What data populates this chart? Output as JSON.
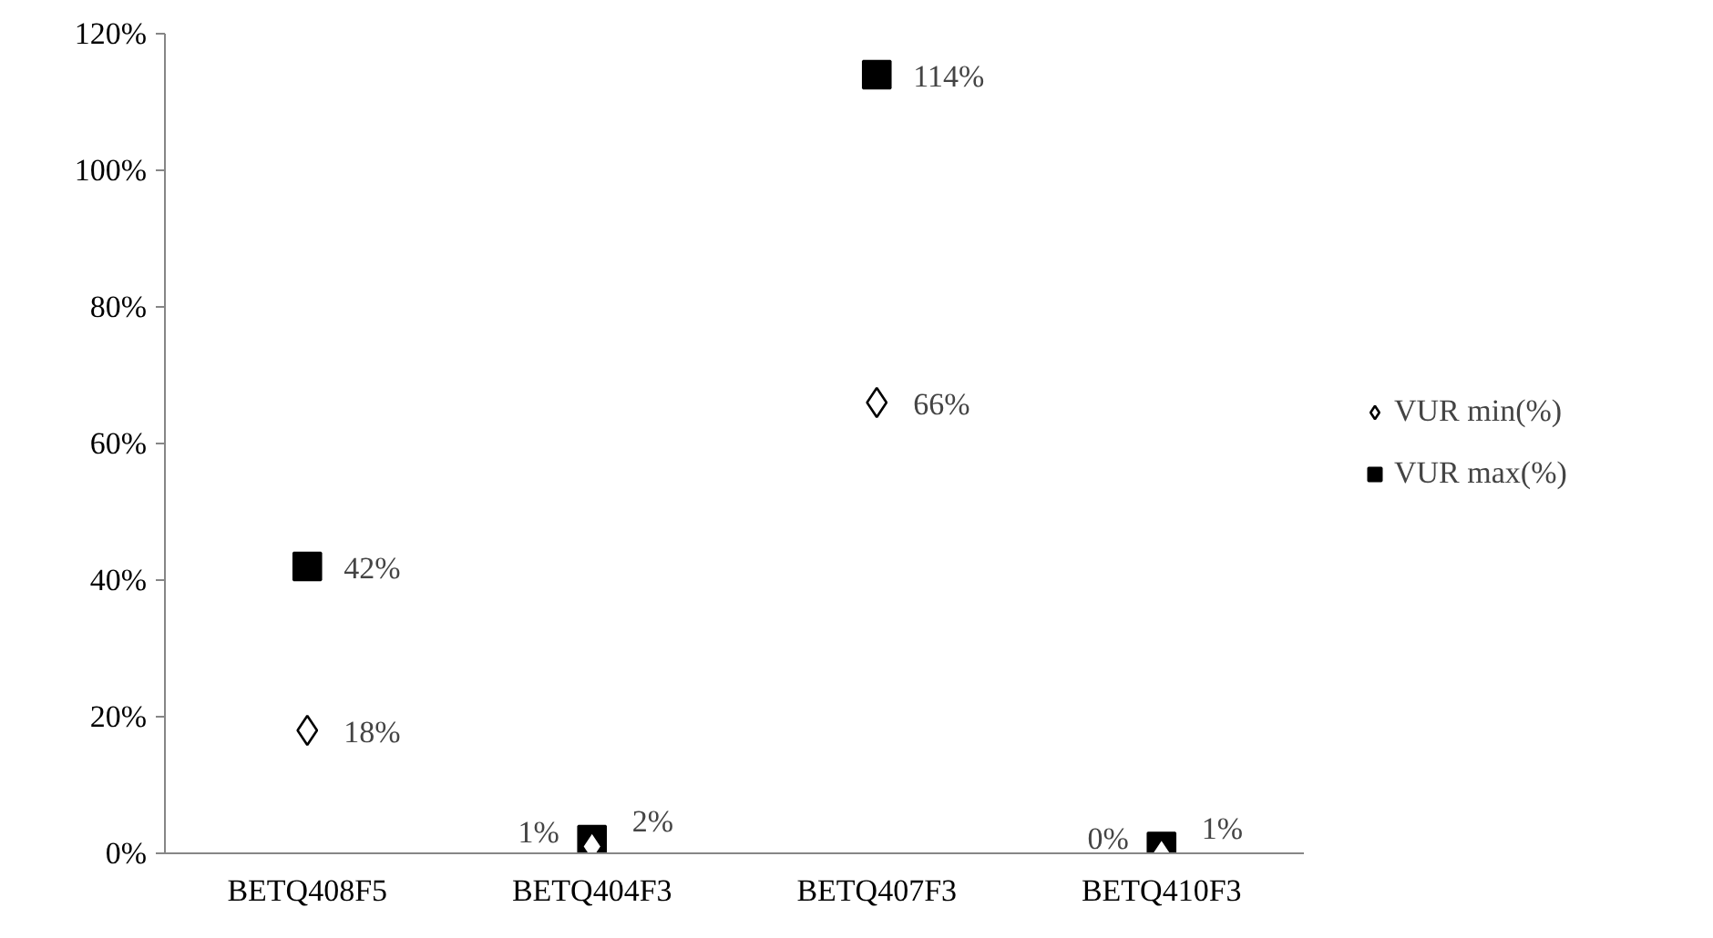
{
  "chart_data": {
    "type": "scatter",
    "categories": [
      "BETQ408F5",
      "BETQ404F3",
      "BETQ407F3",
      "BETQ410F3"
    ],
    "series": [
      {
        "name": "VUR min(%)",
        "color": "#000000",
        "marker": "diamond",
        "values": [
          18,
          1,
          66,
          0
        ],
        "value_labels": [
          "18%",
          "1%",
          "66%",
          "0%"
        ]
      },
      {
        "name": "VUR max(%)",
        "color": "#000000",
        "marker": "square",
        "values": [
          42,
          2,
          114,
          1
        ],
        "value_labels": [
          "42%",
          "2%",
          "114%",
          "1%"
        ]
      }
    ],
    "ylim": [
      0,
      120
    ],
    "yticks": [
      {
        "value": 0,
        "label": "0%"
      },
      {
        "value": 20,
        "label": "20%"
      },
      {
        "value": 40,
        "label": "40%"
      },
      {
        "value": 60,
        "label": "60%"
      },
      {
        "value": 80,
        "label": "80%"
      },
      {
        "value": 100,
        "label": "100%"
      },
      {
        "value": 120,
        "label": "120%"
      }
    ],
    "grid": false,
    "legend": "right"
  }
}
